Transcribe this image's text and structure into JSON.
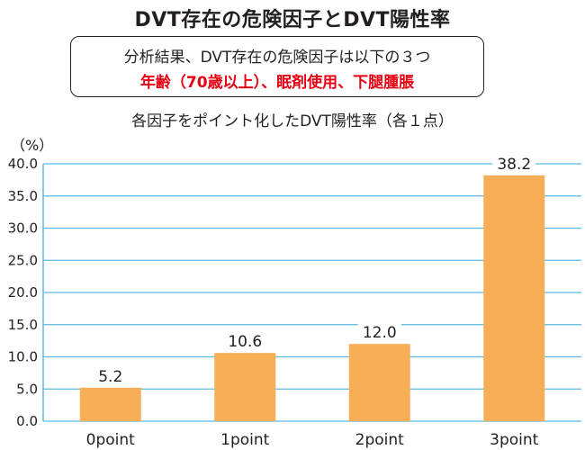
{
  "chart_data": {
    "type": "bar",
    "title": "DVT存在の危険因子とDVT陽性率",
    "note_line1": "分析結果、DVT存在の危険因子は以下の３つ",
    "note_line2": "年齢（70歳以上）、眠剤使用、下腿腫脹",
    "subtitle": "各因子をポイント化したDVT陽性率（各１点）",
    "ylabel": "（%）",
    "xlabel": "",
    "categories": [
      "0point",
      "1point",
      "2point",
      "3point"
    ],
    "values": [
      5.2,
      10.6,
      12.0,
      38.2
    ],
    "value_labels": [
      "5.2",
      "10.6",
      "12.0",
      "38.2"
    ],
    "ylim": [
      0,
      40
    ],
    "yticks": [
      "0.0",
      "5.0",
      "10.0",
      "15.0",
      "20.0",
      "25.0",
      "30.0",
      "35.0",
      "40.0"
    ],
    "ytick_values": [
      0,
      5,
      10,
      15,
      20,
      25,
      30,
      35,
      40
    ],
    "grid": true,
    "bar_color": "#f7ae57",
    "grid_color": "#5bb8df",
    "note_highlight_color": "#e60012"
  }
}
